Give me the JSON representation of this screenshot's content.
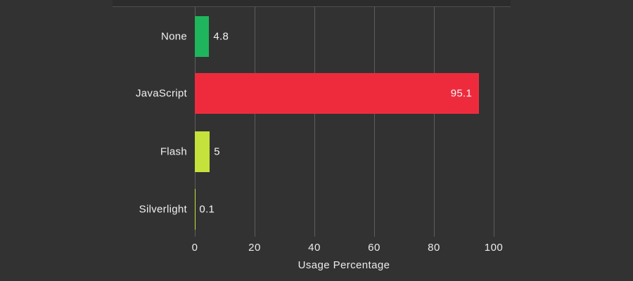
{
  "chart_data": {
    "type": "bar",
    "orientation": "horizontal",
    "title": "",
    "xlabel": "Usage Percentage",
    "ylabel": "",
    "categories": [
      "None",
      "JavaScript",
      "Flash",
      "Silverlight"
    ],
    "values": [
      4.8,
      95.1,
      5,
      0.1
    ],
    "value_labels": [
      "4.8",
      "95.1",
      "5",
      "0.1"
    ],
    "bar_colors": [
      "#1fb55c",
      "#ee2b3d",
      "#c4e23b",
      "#c4e23b"
    ],
    "xticks": [
      0,
      20,
      40,
      60,
      80,
      100
    ],
    "xlim": [
      0,
      105
    ],
    "grid": "vertical-gridlines",
    "legend": "none"
  },
  "colors": {
    "background": "#323232",
    "gridline": "#5d5d5d",
    "text": "#f0f0f0",
    "frame_edge": "#2c2c2c",
    "frame_edge_line": "#4f4f4f"
  }
}
